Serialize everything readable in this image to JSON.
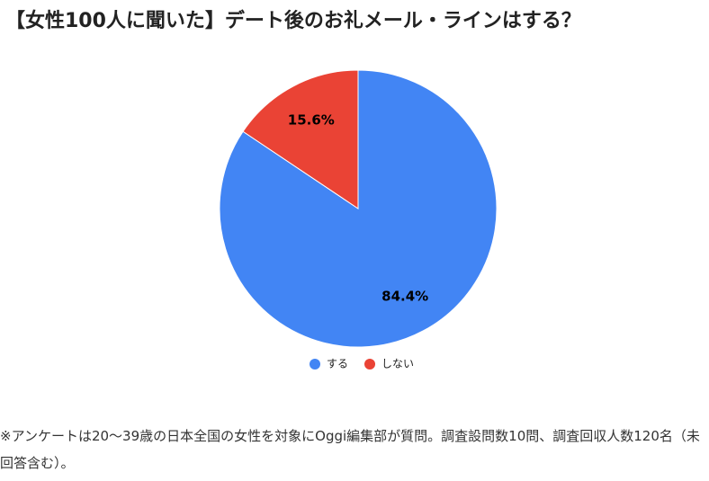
{
  "chart_data": {
    "type": "pie",
    "title": "【女性100人に聞いた】デート後のお礼メール・ラインはする？",
    "categories": [
      "する",
      "しない"
    ],
    "values": [
      84.4,
      15.6
    ],
    "value_labels": [
      "84.4%",
      "15.6%"
    ],
    "colors": [
      "#4285f4",
      "#ea4335"
    ],
    "start": "top",
    "direction": "clockwise",
    "legend": "bottom",
    "note": "※アンケートは20〜39歳の日本全国の女性を対象にOggi編集部が質問。調査設問数10問、調査回収人数120名（未回答含む）。"
  }
}
